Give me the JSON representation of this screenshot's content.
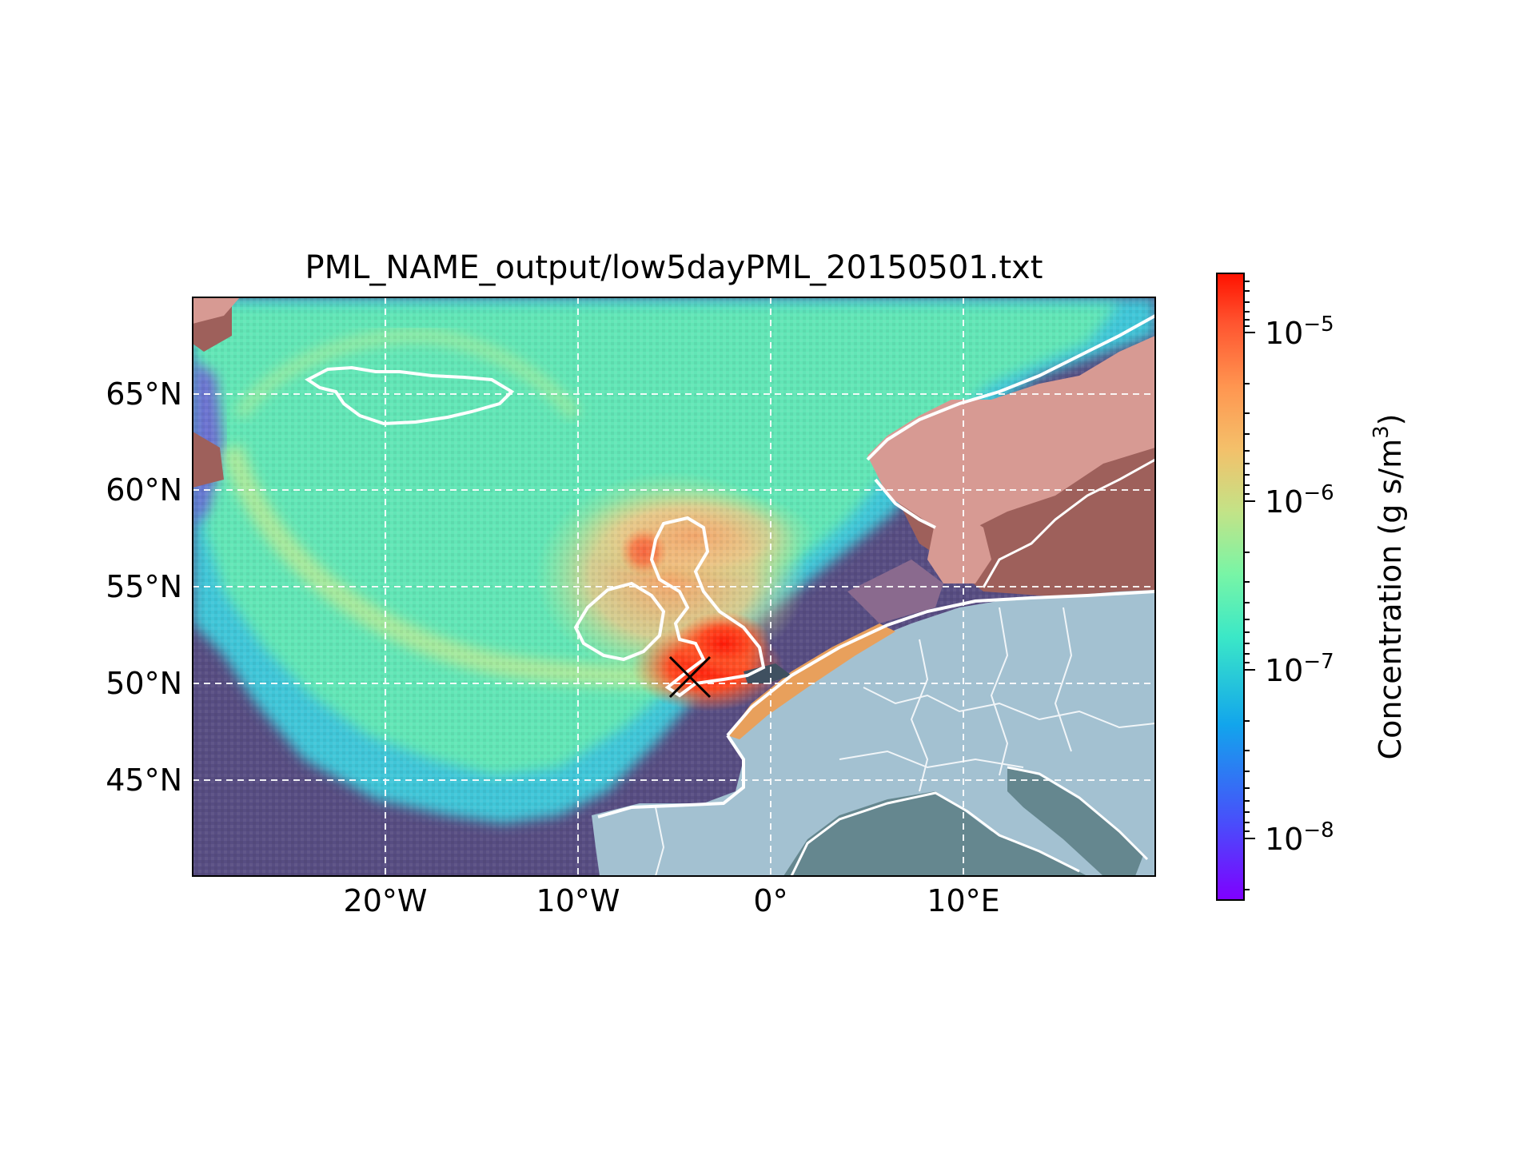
{
  "title": "PML_NAME_output/low5dayPML_20150501.txt",
  "map": {
    "lon_range": [
      -30,
      20
    ],
    "lat_range": [
      40,
      70
    ],
    "x_ticks": [
      {
        "lon": -20,
        "label": "20°W"
      },
      {
        "lon": -10,
        "label": "10°W"
      },
      {
        "lon": 0,
        "label": "0°"
      },
      {
        "lon": 10,
        "label": "10°E"
      }
    ],
    "y_ticks": [
      {
        "lat": 65,
        "label": "65°N"
      },
      {
        "lat": 60,
        "label": "60°N"
      },
      {
        "lat": 55,
        "label": "55°N"
      },
      {
        "lat": 50,
        "label": "50°N"
      },
      {
        "lat": 45,
        "label": "45°N"
      }
    ],
    "gridlines": true,
    "release_marker": {
      "lon": -4.2,
      "lat": 50.4,
      "symbol": "X"
    },
    "colors": {
      "ocean_low": "#574d82",
      "land": "#a3c1d1",
      "land_dark": "#65878f",
      "scandinavia": "#d79a93",
      "scandinavia_dark": "#9e605b",
      "coastline": "#ffffff",
      "plume_core": "#ff2a10"
    }
  },
  "colorbar": {
    "label_main": "Concentration (g s/m",
    "label_sup": "3",
    "label_end": ")",
    "scale": "log",
    "range": [
      5e-09,
      2e-05
    ],
    "ticks": [
      {
        "base": "10",
        "exp": "−5",
        "value": 1e-05
      },
      {
        "base": "10",
        "exp": "−6",
        "value": 1e-06
      },
      {
        "base": "10",
        "exp": "−7",
        "value": 1e-07
      },
      {
        "base": "10",
        "exp": "−8",
        "value": 1e-08
      }
    ],
    "colormap": "rainbow"
  }
}
